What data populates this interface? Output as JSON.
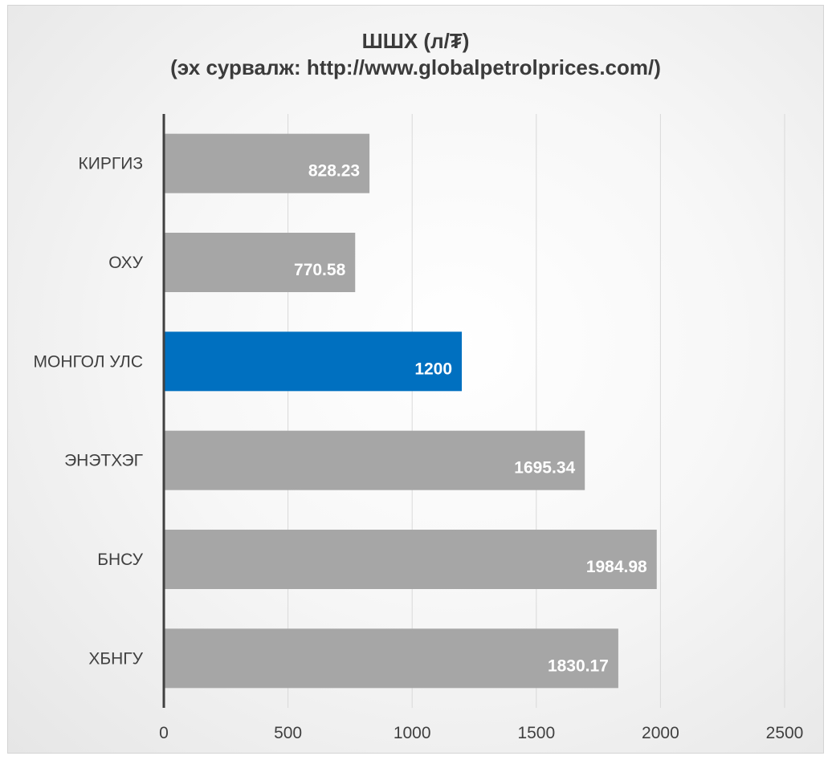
{
  "chart_data": {
    "type": "bar",
    "orientation": "horizontal",
    "title": "ШШХ (л/₮)",
    "subtitle": "(эх сурвалж: http://www.globalpetrolprices.com/)",
    "categories": [
      "КИРГИЗ",
      "ОХУ",
      "МОНГОЛ УЛС",
      "ЭНЭТХЭГ",
      "БНСУ",
      "ХБНГУ"
    ],
    "values": [
      828.23,
      770.58,
      1200,
      1695.34,
      1984.98,
      1830.17
    ],
    "data_labels": [
      "828.23",
      "770.58",
      "1200",
      "1695.34",
      "1984.98",
      "1830.17"
    ],
    "xlim": [
      0,
      2500
    ],
    "xticks": [
      0,
      500,
      1000,
      1500,
      2000,
      2500
    ],
    "xtick_labels": [
      "0",
      "500",
      "1000",
      "1500",
      "2000",
      "2500"
    ],
    "grid": "vertical",
    "legend": "none",
    "colors": {
      "default_bar": "#a6a6a6",
      "highlight_bar": "#0070c0",
      "highlight_category": "МОНГОЛ УЛС",
      "axis": "#404040",
      "gridline": "#d9d9d9"
    }
  }
}
